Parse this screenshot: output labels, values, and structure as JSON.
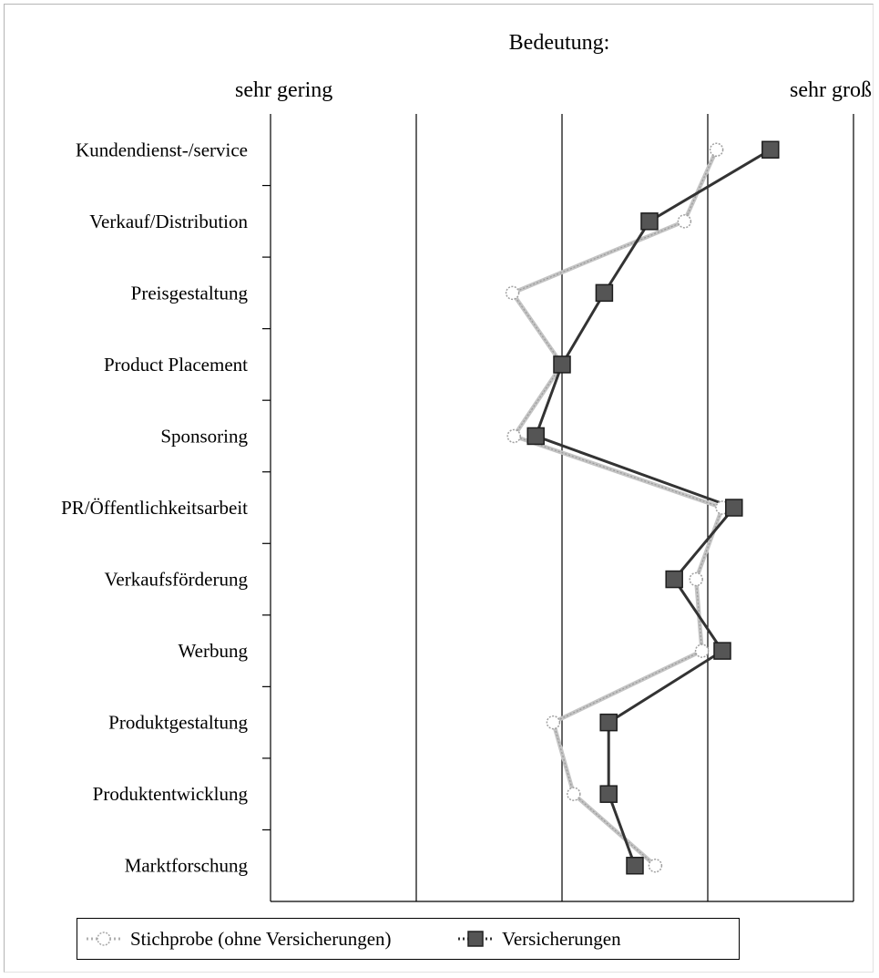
{
  "chart_data": {
    "type": "line",
    "orientation": "horizontal-profile",
    "title": "Bedeutung:",
    "scale_low_label": "sehr gering",
    "scale_high_label": "sehr groß",
    "xlim": [
      1,
      5
    ],
    "grid": true,
    "legend_position": "bottom",
    "categories": [
      "Kundendienst-/service",
      "Verkauf/Distribution",
      "Preisgestaltung",
      "Product Placement",
      "Sponsoring",
      "PR/Öffentlichkeitsarbeit",
      "Verkaufsförderung",
      "Werbung",
      "Produktgestaltung",
      "Produktentwicklung",
      "Marktforschung"
    ],
    "series": [
      {
        "name": "Stichprobe (ohne Versicherungen)",
        "marker": "circle",
        "color": "#b0b0b0",
        "values": [
          4.06,
          3.84,
          2.66,
          3.0,
          2.67,
          4.1,
          3.92,
          3.96,
          2.94,
          3.08,
          3.64
        ]
      },
      {
        "name": "Versicherungen",
        "marker": "square",
        "color": "#333333",
        "values": [
          4.43,
          3.6,
          3.29,
          3.0,
          2.82,
          4.18,
          3.77,
          4.1,
          3.32,
          3.32,
          3.5
        ]
      }
    ]
  }
}
